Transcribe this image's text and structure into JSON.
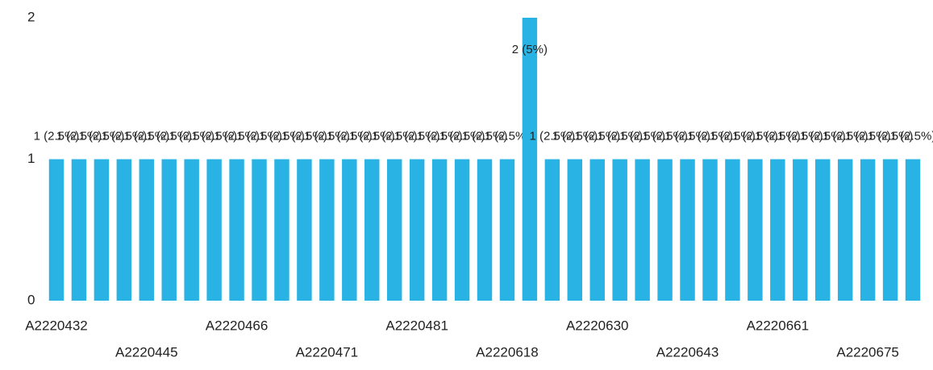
{
  "chart_data": {
    "type": "bar",
    "categories": [
      "A2220432",
      null,
      null,
      null,
      "A2220445",
      null,
      null,
      null,
      "A2220466",
      null,
      null,
      null,
      "A2220471",
      null,
      null,
      null,
      "A2220481",
      null,
      null,
      null,
      "A2220618",
      null,
      null,
      null,
      "A2220630",
      null,
      null,
      null,
      "A2220643",
      null,
      null,
      null,
      "A2220661",
      null,
      null,
      null,
      "A2220675",
      null,
      null
    ],
    "values": [
      1,
      1,
      1,
      1,
      1,
      1,
      1,
      1,
      1,
      1,
      1,
      1,
      1,
      1,
      1,
      1,
      1,
      1,
      1,
      1,
      1,
      2,
      1,
      1,
      1,
      1,
      1,
      1,
      1,
      1,
      1,
      1,
      1,
      1,
      1,
      1,
      1,
      1,
      1
    ],
    "value_labels": [
      "1 (2.5%)",
      "1 (2.5%)",
      "1 (2.5%)",
      "1 (2.5%)",
      "1 (2.5%)",
      "1 (2.5%)",
      "1 (2.5%)",
      "1 (2.5%)",
      "1 (2.5%)",
      "1 (2.5%)",
      "1 (2.5%)",
      "1 (2.5%)",
      "1 (2.5%)",
      "1 (2.5%)",
      "1 (2.5%)",
      "1 (2.5%)",
      "1 (2.5%)",
      "1 (2.5%)",
      "1 (2.5%)",
      "1 (2.5%)",
      "1 (2.5%)",
      "2 (5%)",
      "1 (2.5%)",
      "1 (2.5%)",
      "1 (2.5%)",
      "1 (2.5%)",
      "1 (2.5%)",
      "1 (2.5%)",
      "1 (2.5%)",
      "1 (2.5%)",
      "1 (2.5%)",
      "1 (2.5%)",
      "1 (2.5%)",
      "1 (2.5%)",
      "1 (2.5%)",
      "1 (2.5%)",
      "1 (2.5%)",
      "1 (2.5%)",
      "1 (2.5%)"
    ],
    "color": "#29b3e4",
    "ylim": [
      0,
      2
    ],
    "yticks": [
      0,
      1,
      2
    ],
    "grid": false
  }
}
